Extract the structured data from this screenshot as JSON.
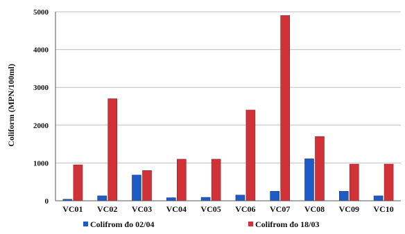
{
  "chart_data": {
    "type": "bar",
    "title": "",
    "xlabel": "",
    "ylabel": "Coliform (MPN/100ml)",
    "categories": [
      "VC01",
      "VC02",
      "VC03",
      "VC04",
      "VC05",
      "VC06",
      "VC07",
      "VC08",
      "VC09",
      "VC10"
    ],
    "series": [
      {
        "name": "Colifrom đo 02/04",
        "color": "#1f5bc4",
        "values": [
          40,
          130,
          680,
          80,
          90,
          150,
          250,
          1110,
          250,
          130
        ]
      },
      {
        "name": "Colifrom đo 18/03",
        "color": "#d03238",
        "values": [
          950,
          2700,
          800,
          1100,
          1100,
          2400,
          4900,
          1700,
          970,
          970
        ]
      }
    ],
    "ylim": [
      0,
      5000
    ],
    "yticks": [
      0,
      1000,
      2000,
      3000,
      4000,
      5000
    ],
    "grid": true,
    "legend_position": "bottom"
  }
}
